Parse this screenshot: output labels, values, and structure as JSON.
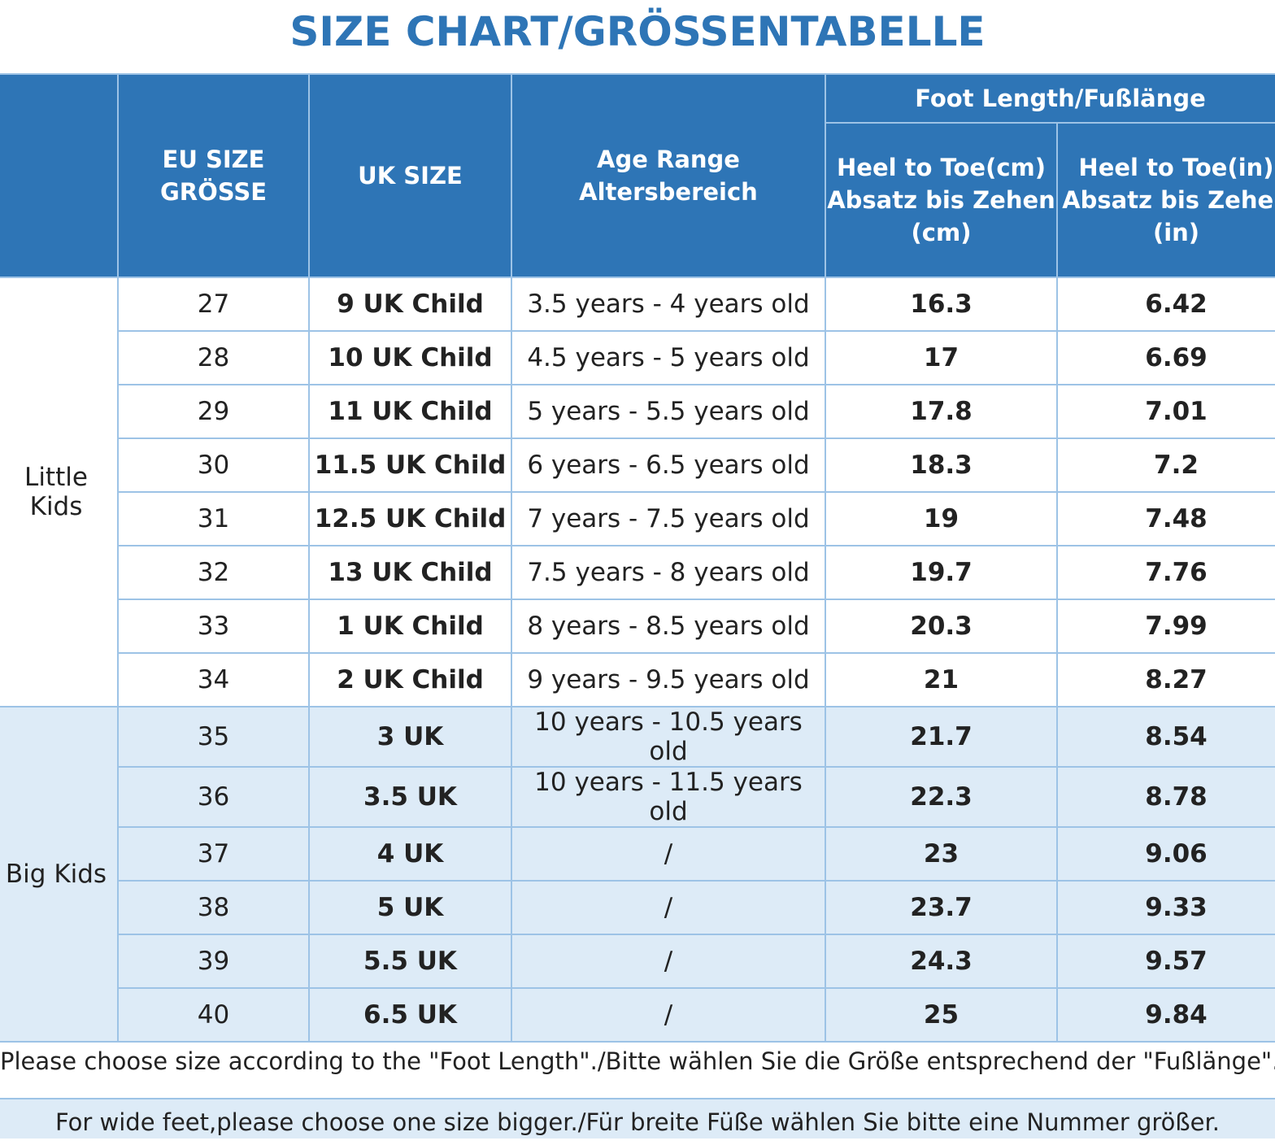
{
  "title": "SIZE CHART/GRÖSSENTABELLE",
  "header": {
    "eu_line1": "EU SIZE",
    "eu_line2": "GRÖSSE",
    "uk": "UK SIZE",
    "age_line1": "Age Range",
    "age_line2": "Altersbereich",
    "foot_length": "Foot Length/Fußlänge",
    "cm_line1": "Heel to Toe(cm)",
    "cm_line2": "Absatz bis Zehen",
    "cm_line3": "(cm)",
    "in_line1": "Heel to Toe(in)",
    "in_line2": "Absatz bis Zehen",
    "in_line3": "(in)"
  },
  "groups": {
    "little": "Little Kids",
    "big": "Big Kids"
  },
  "rows": [
    {
      "eu": "27",
      "uk": "9 UK Child",
      "age": "3.5 years - 4 years old",
      "cm": "16.3",
      "in": "6.42"
    },
    {
      "eu": "28",
      "uk": "10 UK Child",
      "age": "4.5 years - 5 years old",
      "cm": "17",
      "in": "6.69"
    },
    {
      "eu": "29",
      "uk": "11 UK Child",
      "age": "5 years - 5.5 years old",
      "cm": "17.8",
      "in": "7.01"
    },
    {
      "eu": "30",
      "uk": "11.5 UK Child",
      "age": "6 years - 6.5 years old",
      "cm": "18.3",
      "in": "7.2"
    },
    {
      "eu": "31",
      "uk": "12.5 UK Child",
      "age": "7 years - 7.5 years old",
      "cm": "19",
      "in": "7.48"
    },
    {
      "eu": "32",
      "uk": "13 UK Child",
      "age": "7.5 years - 8 years old",
      "cm": "19.7",
      "in": "7.76"
    },
    {
      "eu": "33",
      "uk": "1 UK Child",
      "age": "8 years - 8.5 years old",
      "cm": "20.3",
      "in": "7.99"
    },
    {
      "eu": "34",
      "uk": "2 UK Child",
      "age": "9 years - 9.5 years old",
      "cm": "21",
      "in": "8.27"
    },
    {
      "eu": "35",
      "uk": "3 UK",
      "age": "10 years - 10.5 years old",
      "cm": "21.7",
      "in": "8.54"
    },
    {
      "eu": "36",
      "uk": "3.5 UK",
      "age": "10 years - 11.5 years old",
      "cm": "22.3",
      "in": "8.78"
    },
    {
      "eu": "37",
      "uk": "4 UK",
      "age": "/",
      "cm": "23",
      "in": "9.06"
    },
    {
      "eu": "38",
      "uk": "5 UK",
      "age": "/",
      "cm": "23.7",
      "in": "9.33"
    },
    {
      "eu": "39",
      "uk": "5.5 UK",
      "age": "/",
      "cm": "24.3",
      "in": "9.57"
    },
    {
      "eu": "40",
      "uk": "6.5 UK",
      "age": "/",
      "cm": "25",
      "in": "9.84"
    }
  ],
  "notes": {
    "foot_length": "Please choose size according to the \"Foot Length\"./Bitte wählen Sie die Größe entsprechend der \"Fußlänge\".",
    "wide_feet": "For wide feet,please choose one size bigger./Für breite Füße wählen Sie bitte eine Nummer größer."
  },
  "colors": {
    "title": "#2e75b6",
    "header_bg": "#2e75b6",
    "grid": "#9dc3e6",
    "big_kids_bg": "#ddebf7"
  }
}
